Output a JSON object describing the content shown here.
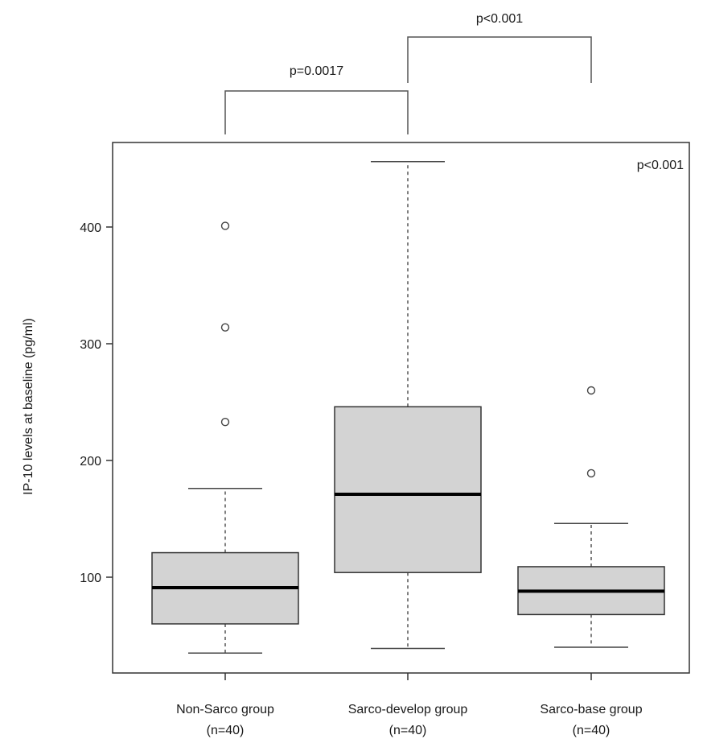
{
  "chart_data": {
    "type": "boxplot",
    "ylabel": "IP-10 levels at baseline (pg/ml)",
    "yticks": [
      100,
      200,
      300,
      400
    ],
    "ylim": [
      25,
      480
    ],
    "categories": [
      {
        "name": "Non-Sarco group",
        "n": "(n=40)"
      },
      {
        "name": "Sarco-develop group",
        "n": "(n=40)"
      },
      {
        "name": "Sarco-base group",
        "n": "(n=40)"
      }
    ],
    "boxes": [
      {
        "whisker_low": 35,
        "q1": 60,
        "median": 91,
        "q3": 121,
        "whisker_high": 176,
        "outliers": [
          233,
          314,
          401
        ]
      },
      {
        "whisker_low": 39,
        "q1": 104,
        "median": 171,
        "q3": 246,
        "whisker_high": 456,
        "outliers": []
      },
      {
        "whisker_low": 40,
        "q1": 68,
        "median": 88,
        "q3": 109,
        "whisker_high": 146,
        "outliers": [
          189,
          260
        ]
      }
    ],
    "overall_p": "p<0.001",
    "comparisons": [
      {
        "from": 0,
        "to": 1,
        "label": "p=0.0017"
      },
      {
        "from": 1,
        "to": 2,
        "label": "p<0.001"
      }
    ]
  }
}
